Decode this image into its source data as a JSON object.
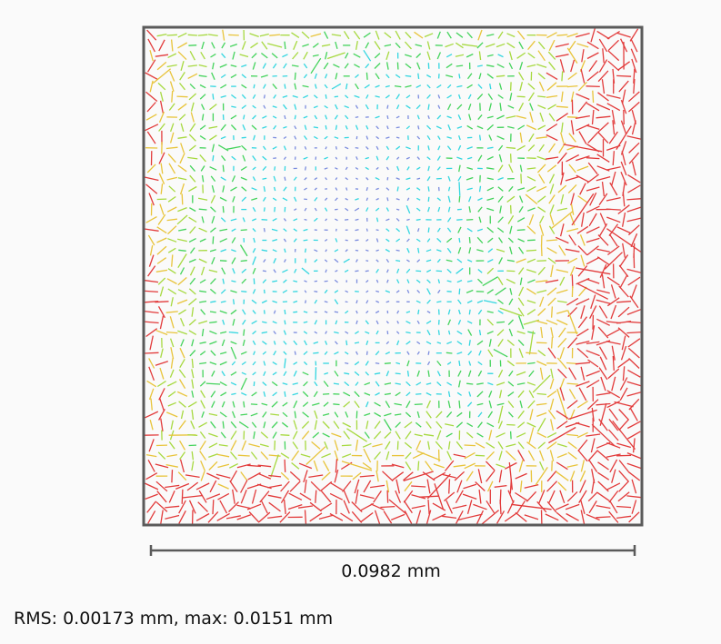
{
  "chart_data": {
    "type": "scatter",
    "scale_bar": {
      "label": "0.0982 mm",
      "value_mm": 0.0982
    },
    "stats": {
      "text": "RMS: 0.00173 mm, max: 0.0151 mm",
      "rms_mm": 0.00173,
      "max_mm": 0.0151
    },
    "colors": {
      "frame": "#5a5a5a",
      "background": "#fafafa",
      "magnitude_ramp": [
        "#7b8cde",
        "#33d6e0",
        "#43d35b",
        "#a6d93f",
        "#e8c43a",
        "#e23a3a"
      ]
    },
    "grid_density": 48,
    "legend": "none"
  }
}
